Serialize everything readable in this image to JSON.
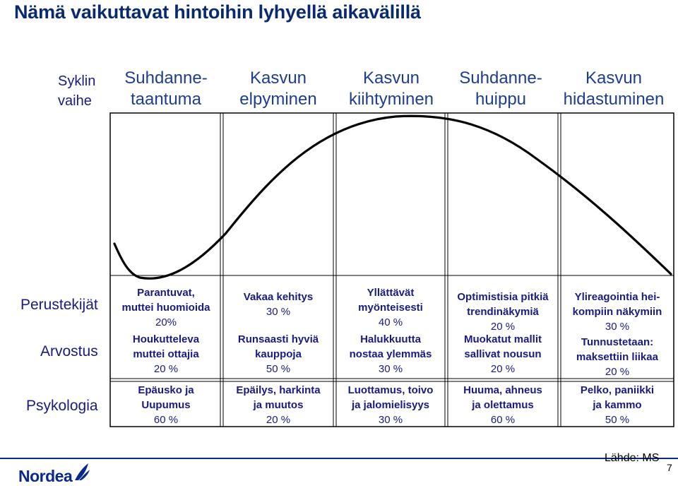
{
  "title": "Nämä vaikuttavat hintoihin lyhyellä aikavälillä",
  "phase_label": [
    "Syklin",
    "vaihe"
  ],
  "phases": [
    {
      "lines": [
        "Suhdanne-",
        "taantuma"
      ]
    },
    {
      "lines": [
        "Kasvun",
        "elpyminen"
      ]
    },
    {
      "lines": [
        "Kasvun",
        "kiihtyminen"
      ]
    },
    {
      "lines": [
        "Suhdanne-",
        "huippu"
      ]
    },
    {
      "lines": [
        "Kasvun",
        "hidastuminen"
      ]
    }
  ],
  "rows": {
    "perustekijat": "Perustekijät",
    "arvostus": "Arvostus",
    "psykologia": "Psykologia"
  },
  "columns": [
    {
      "perustekijat": [
        "Parantuvat,",
        "muttei huomioida",
        "20%"
      ],
      "arvostus": [
        "Houkutteleva",
        "muttei ottajia",
        "20 %"
      ],
      "psykologia": [
        "Epäusko ja",
        "Uupumus",
        "60 %"
      ]
    },
    {
      "perustekijat": [
        "Vakaa kehitys",
        "30 %"
      ],
      "arvostus": [
        "Runsaasti hyviä",
        "kauppoja",
        "50 %"
      ],
      "psykologia": [
        "Epäilys, harkinta",
        "ja muutos",
        "20 %"
      ]
    },
    {
      "perustekijat": [
        "Yllättävät",
        "myönteisesti",
        "40 %"
      ],
      "arvostus": [
        "Halukkuutta",
        "nostaa ylemmäs",
        "30 %"
      ],
      "psykologia": [
        "Luottamus, toivo",
        "ja jalomielisyys",
        "30 %"
      ]
    },
    {
      "perustekijat": [
        "Optimistisia pitkiä",
        "trendinäkymiä",
        "20 %"
      ],
      "arvostus": [
        "Muokatut mallit",
        "sallivat nousun",
        "20 %"
      ],
      "psykologia": [
        "Huuma, ahneus",
        "ja olettamus",
        "60 %"
      ]
    },
    {
      "perustekijat": [
        "Ylireagointia hei-",
        "kompiin näkymiin",
        "30 %"
      ],
      "arvostus": [
        "Tunnustetaan:",
        "maksettiin liikaa",
        "20 %"
      ],
      "psykologia": [
        "Pelko, paniikki",
        "ja kammo",
        "50 %"
      ]
    }
  ],
  "logo_text": "Nordea",
  "source": "Lähde: MS",
  "page_number": "7",
  "colors": {
    "title": "#0a2a6e",
    "text": "#1a1a80",
    "phase": "#1f3d8f",
    "grid": "#000000",
    "brand": "#0a2a8a"
  }
}
